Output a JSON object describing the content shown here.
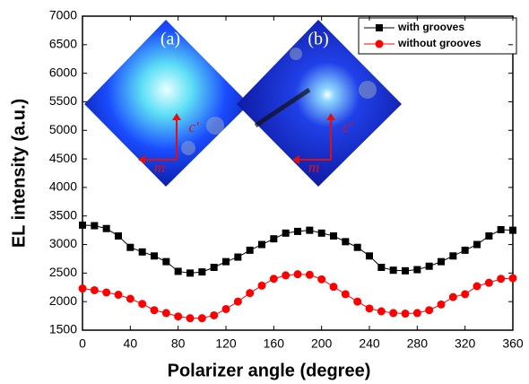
{
  "chart_data": {
    "type": "line",
    "x_label": "Polarizer angle (degree)",
    "y_label": "EL intensity (a.u.)",
    "x": [
      0,
      10,
      20,
      30,
      40,
      50,
      60,
      70,
      80,
      90,
      100,
      110,
      120,
      130,
      140,
      150,
      160,
      170,
      180,
      190,
      200,
      210,
      220,
      230,
      240,
      250,
      260,
      270,
      280,
      290,
      300,
      310,
      320,
      330,
      340,
      350,
      360
    ],
    "series": [
      {
        "name": "with grooves",
        "color": "#000000",
        "marker": "square",
        "values": [
          3340,
          3330,
          3280,
          3150,
          2950,
          2870,
          2800,
          2700,
          2530,
          2500,
          2520,
          2600,
          2700,
          2780,
          2900,
          3000,
          3100,
          3200,
          3230,
          3250,
          3200,
          3150,
          3050,
          2950,
          2800,
          2600,
          2550,
          2540,
          2560,
          2620,
          2700,
          2800,
          2900,
          3000,
          3150,
          3260,
          3250
        ]
      },
      {
        "name": "without grooves",
        "color": "#ff0000",
        "marker": "circle",
        "values": [
          2230,
          2200,
          2160,
          2120,
          2050,
          1960,
          1850,
          1800,
          1740,
          1710,
          1710,
          1760,
          1870,
          2000,
          2150,
          2280,
          2400,
          2460,
          2480,
          2470,
          2390,
          2260,
          2130,
          2000,
          1880,
          1830,
          1800,
          1790,
          1800,
          1850,
          1950,
          2080,
          2130,
          2270,
          2330,
          2400,
          2410
        ]
      }
    ],
    "xlim": [
      0,
      360
    ],
    "xticks": [
      0,
      40,
      80,
      120,
      160,
      200,
      240,
      280,
      320,
      360
    ],
    "ylim": [
      1500,
      7000
    ],
    "yticks": [
      1500,
      2000,
      2500,
      3000,
      3500,
      4000,
      4500,
      5000,
      5500,
      6000,
      6500,
      7000
    ],
    "legend_position": "top-right",
    "annotations": [
      "(a)",
      "c'",
      "m",
      "(b)",
      "c'",
      "m"
    ]
  }
}
